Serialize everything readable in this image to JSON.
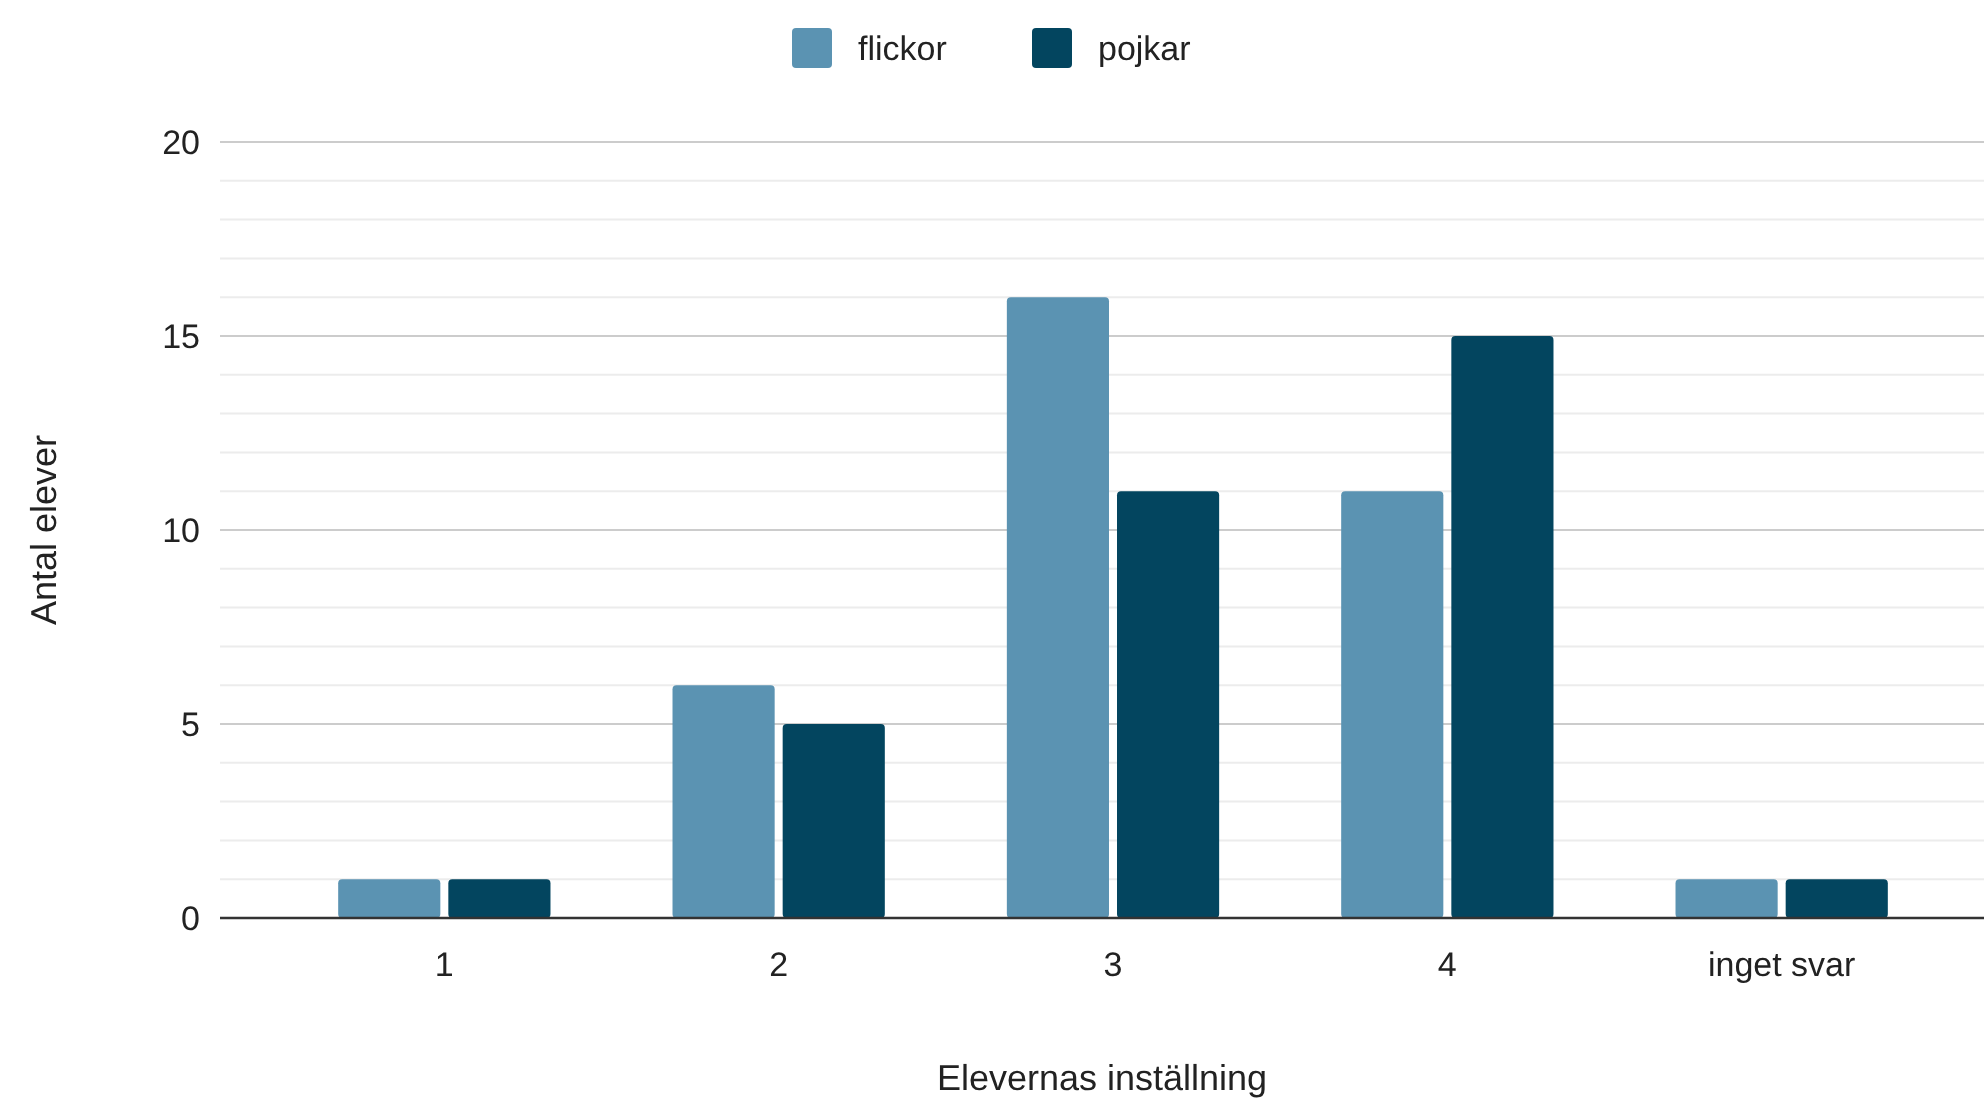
{
  "chart_data": {
    "type": "bar",
    "xlabel": "Elevernas inställning",
    "ylabel": "Antal elever",
    "categories": [
      "1",
      "2",
      "3",
      "4",
      "inget svar"
    ],
    "series": [
      {
        "name": "flickor",
        "color": "#5b93b2",
        "values": [
          1,
          6,
          16,
          11,
          1
        ]
      },
      {
        "name": "pojkar",
        "color": "#03455f",
        "values": [
          1,
          5,
          11,
          15,
          1
        ]
      }
    ],
    "ylim": [
      0,
      20
    ],
    "yticks": [
      0,
      {
        "value": 1,
        "label": null
      },
      {
        "value": 2,
        "label": null
      },
      {
        "value": 3,
        "label": null
      },
      {
        "value": 4,
        "label": null
      },
      5,
      {
        "value": 6,
        "label": null
      },
      {
        "value": 7,
        "label": null
      },
      {
        "value": 8,
        "label": null
      },
      {
        "value": 9,
        "label": null
      },
      10,
      {
        "value": 11,
        "label": null
      },
      {
        "value": 12,
        "label": null
      },
      {
        "value": 13,
        "label": null
      },
      {
        "value": 14,
        "label": null
      },
      15,
      {
        "value": 16,
        "label": null
      },
      {
        "value": 17,
        "label": null
      },
      {
        "value": 18,
        "label": null
      },
      {
        "value": 19,
        "label": null
      },
      20
    ],
    "grid": "y",
    "legend": "top"
  }
}
